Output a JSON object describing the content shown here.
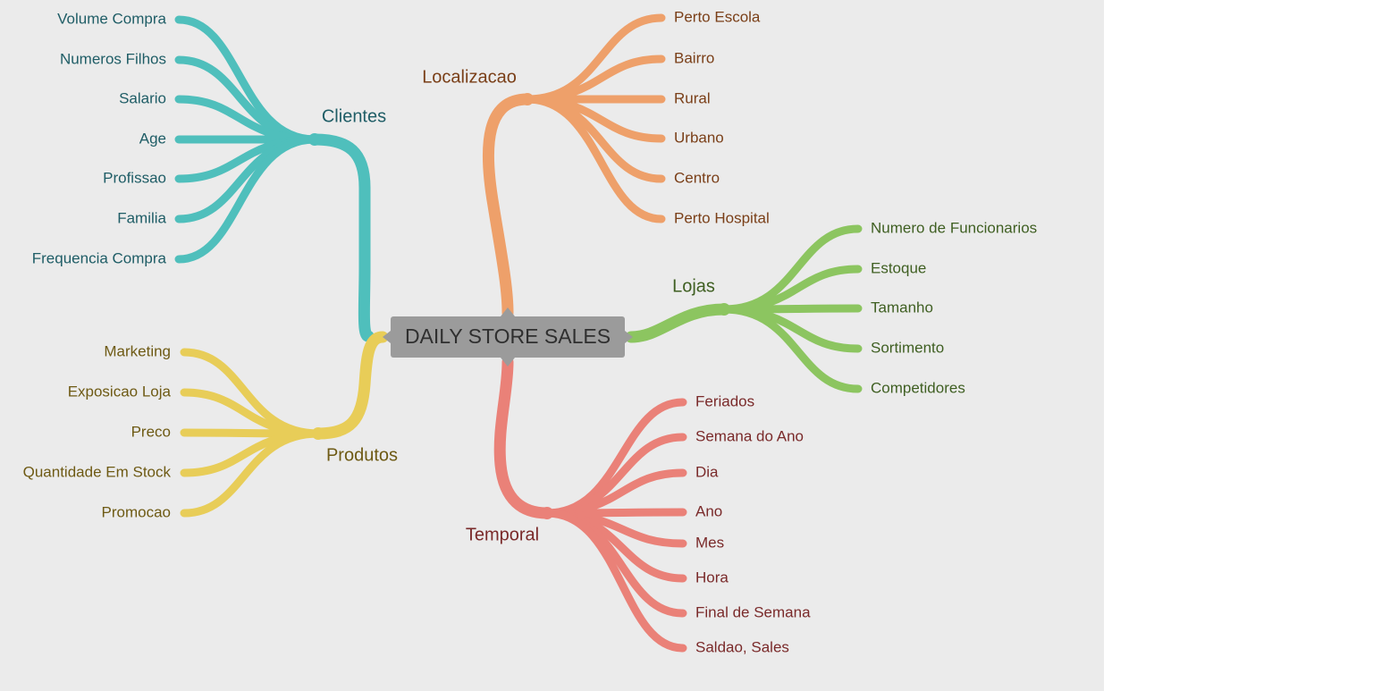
{
  "root": {
    "label": "DAILY STORE SALES",
    "color": "#9b9b9b"
  },
  "branches": {
    "clientes": {
      "label": "Clientes",
      "color": "#4fbfbc",
      "text_color": "#1f5d66",
      "items": [
        "Volume Compra",
        "Numeros Filhos",
        "Salario",
        "Age",
        "Profissao",
        "Familia",
        "Frequencia Compra"
      ]
    },
    "produtos": {
      "label": "Produtos",
      "color": "#e8cd58",
      "text_color": "#6e5a14",
      "items": [
        "Marketing",
        "Exposicao Loja",
        "Preco",
        "Quantidade Em Stock",
        "Promocao"
      ]
    },
    "localizacao": {
      "label": "Localizacao",
      "color": "#eea06a",
      "text_color": "#7a3f18",
      "items": [
        "Perto Escola",
        "Bairro",
        "Rural",
        "Urbano",
        "Centro",
        "Perto Hospital"
      ]
    },
    "lojas": {
      "label": "Lojas",
      "color": "#8cc560",
      "text_color": "#3f5f22",
      "items": [
        "Numero de Funcionarios",
        "Estoque",
        "Tamanho",
        "Sortimento",
        "Competidores"
      ]
    },
    "temporal": {
      "label": "Temporal",
      "color": "#ea8178",
      "text_color": "#7a2a2a",
      "items": [
        "Feriados",
        "Semana do Ano",
        "Dia",
        "Ano",
        "Mes",
        "Hora",
        "Final de Semana",
        "Saldao, Sales"
      ]
    }
  },
  "background_color": "#ebebeb"
}
